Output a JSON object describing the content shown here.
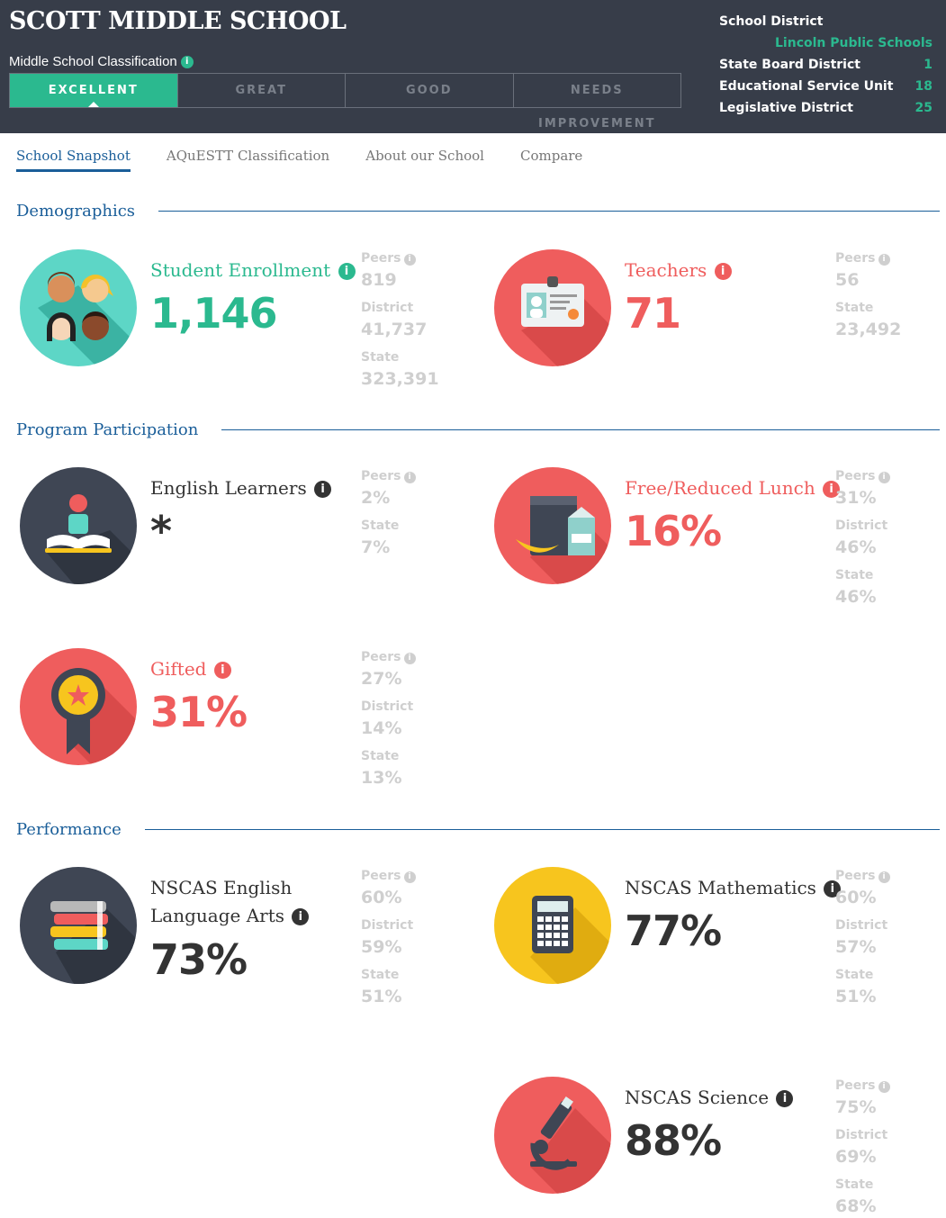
{
  "header": {
    "school_name": "SCOTT MIDDLE SCHOOL",
    "classification_label": "Middle School Classification",
    "ratings": [
      "EXCELLENT",
      "GREAT",
      "GOOD",
      "NEEDS IMPROVEMENT"
    ],
    "active_rating": "EXCELLENT",
    "district_label": "School District",
    "district_value": "Lincoln Public Schools",
    "details": [
      {
        "label": "State Board District",
        "value": "1"
      },
      {
        "label": "Educational Service Unit",
        "value": "18"
      },
      {
        "label": "Legislative District",
        "value": "25"
      }
    ]
  },
  "tabs": [
    "School Snapshot",
    "AQuESTT Classification",
    "About our School",
    "Compare"
  ],
  "active_tab": "School Snapshot",
  "sections": {
    "demographics": "Demographics",
    "program": "Program Participation",
    "performance": "Performance"
  },
  "cards": {
    "enrollment": {
      "label": "Student Enrollment",
      "value": "1,146",
      "compare": [
        {
          "k": "Peers",
          "v": "819"
        },
        {
          "k": "District",
          "v": "41,737"
        },
        {
          "k": "State",
          "v": "323,391"
        }
      ]
    },
    "teachers": {
      "label": "Teachers",
      "value": "71",
      "compare": [
        {
          "k": "Peers",
          "v": "56"
        },
        {
          "k": "State",
          "v": "23,492"
        }
      ]
    },
    "english": {
      "label": "English Learners",
      "value": "*",
      "compare": [
        {
          "k": "Peers",
          "v": "2%"
        },
        {
          "k": "State",
          "v": "7%"
        }
      ]
    },
    "lunch": {
      "label": "Free/Reduced Lunch",
      "value": "16%",
      "compare": [
        {
          "k": "Peers",
          "v": "31%"
        },
        {
          "k": "District",
          "v": "46%"
        },
        {
          "k": "State",
          "v": "46%"
        }
      ]
    },
    "gifted": {
      "label": "Gifted",
      "value": "31%",
      "compare": [
        {
          "k": "Peers",
          "v": "27%"
        },
        {
          "k": "District",
          "v": "14%"
        },
        {
          "k": "State",
          "v": "13%"
        }
      ]
    },
    "ela": {
      "label_line1": "NSCAS English",
      "label_line2": "Language Arts",
      "value": "73%",
      "compare": [
        {
          "k": "Peers",
          "v": "60%"
        },
        {
          "k": "District",
          "v": "59%"
        },
        {
          "k": "State",
          "v": "51%"
        }
      ]
    },
    "math": {
      "label": "NSCAS Mathematics",
      "value": "77%",
      "compare": [
        {
          "k": "Peers",
          "v": "60%"
        },
        {
          "k": "District",
          "v": "57%"
        },
        {
          "k": "State",
          "v": "51%"
        }
      ]
    },
    "science": {
      "label": "NSCAS Science",
      "value": "88%",
      "compare": [
        {
          "k": "Peers",
          "v": "75%"
        },
        {
          "k": "District",
          "v": "69%"
        },
        {
          "k": "State",
          "v": "68%"
        }
      ]
    }
  },
  "icons": {
    "enrollment": "students-icon",
    "teachers": "id-badge-icon",
    "english": "reading-book-icon",
    "lunch": "lunch-bag-icon",
    "gifted": "award-ribbon-icon",
    "ela": "books-stack-icon",
    "math": "calculator-icon",
    "science": "microscope-icon",
    "info": "info-icon"
  },
  "colors": {
    "header_bg": "#373d49",
    "teal": "#2bb98f",
    "coral": "#ef5d5d",
    "blue": "#1a5e99",
    "dark_circle": "#3f4654",
    "yellow": "#f7c51e"
  }
}
